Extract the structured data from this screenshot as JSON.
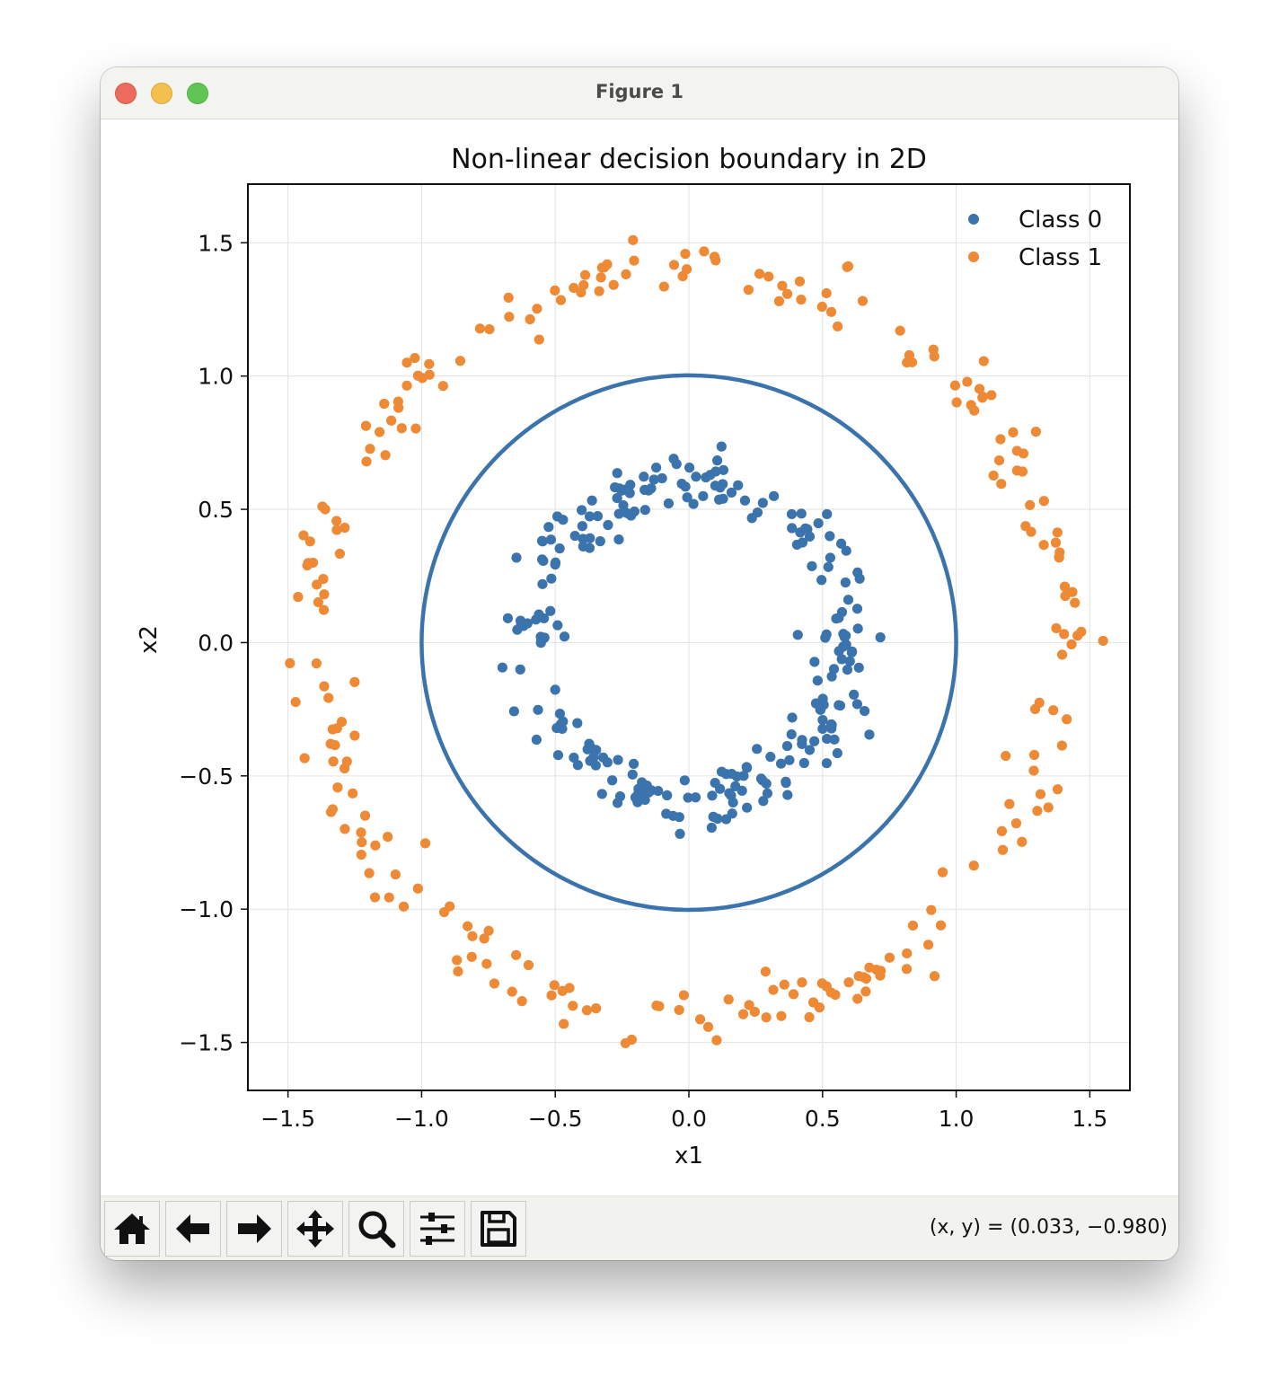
{
  "window": {
    "title": "Figure 1"
  },
  "toolbar": {
    "buttons": [
      {
        "name": "home-button",
        "icon": "home-icon"
      },
      {
        "name": "back-button",
        "icon": "arrow-left-icon"
      },
      {
        "name": "forward-button",
        "icon": "arrow-right-icon"
      },
      {
        "name": "pan-button",
        "icon": "move-icon"
      },
      {
        "name": "zoom-button",
        "icon": "magnifier-icon"
      },
      {
        "name": "configure-subplots-button",
        "icon": "sliders-icon"
      },
      {
        "name": "save-button",
        "icon": "floppy-disk-icon"
      }
    ],
    "coords": "(x, y) = (0.033, −0.980)"
  },
  "chart_data": {
    "type": "scatter",
    "title": "Non-linear decision boundary in 2D",
    "xlabel": "x1",
    "ylabel": "x2",
    "xlim": [
      -1.65,
      1.65
    ],
    "ylim": [
      -1.68,
      1.72
    ],
    "xticks": [
      "−1.5",
      "−1.0",
      "−0.5",
      "0.0",
      "0.5",
      "1.0",
      "1.5"
    ],
    "yticks": [
      "−1.5",
      "−1.0",
      "−0.5",
      "0.0",
      "0.5",
      "1.0",
      "1.5"
    ],
    "grid": true,
    "legend_position": "top-right",
    "series": [
      {
        "name": "Class 0",
        "color": "#3b73ad",
        "radius_mean": 0.6,
        "count": 250
      },
      {
        "name": "Class 1",
        "color": "#ee8a35",
        "radius_mean": 1.4,
        "count": 250
      }
    ],
    "decision_boundary": {
      "shape": "circle",
      "radius": 1.0,
      "center": [
        0,
        0
      ],
      "color": "#3b73ad"
    }
  }
}
